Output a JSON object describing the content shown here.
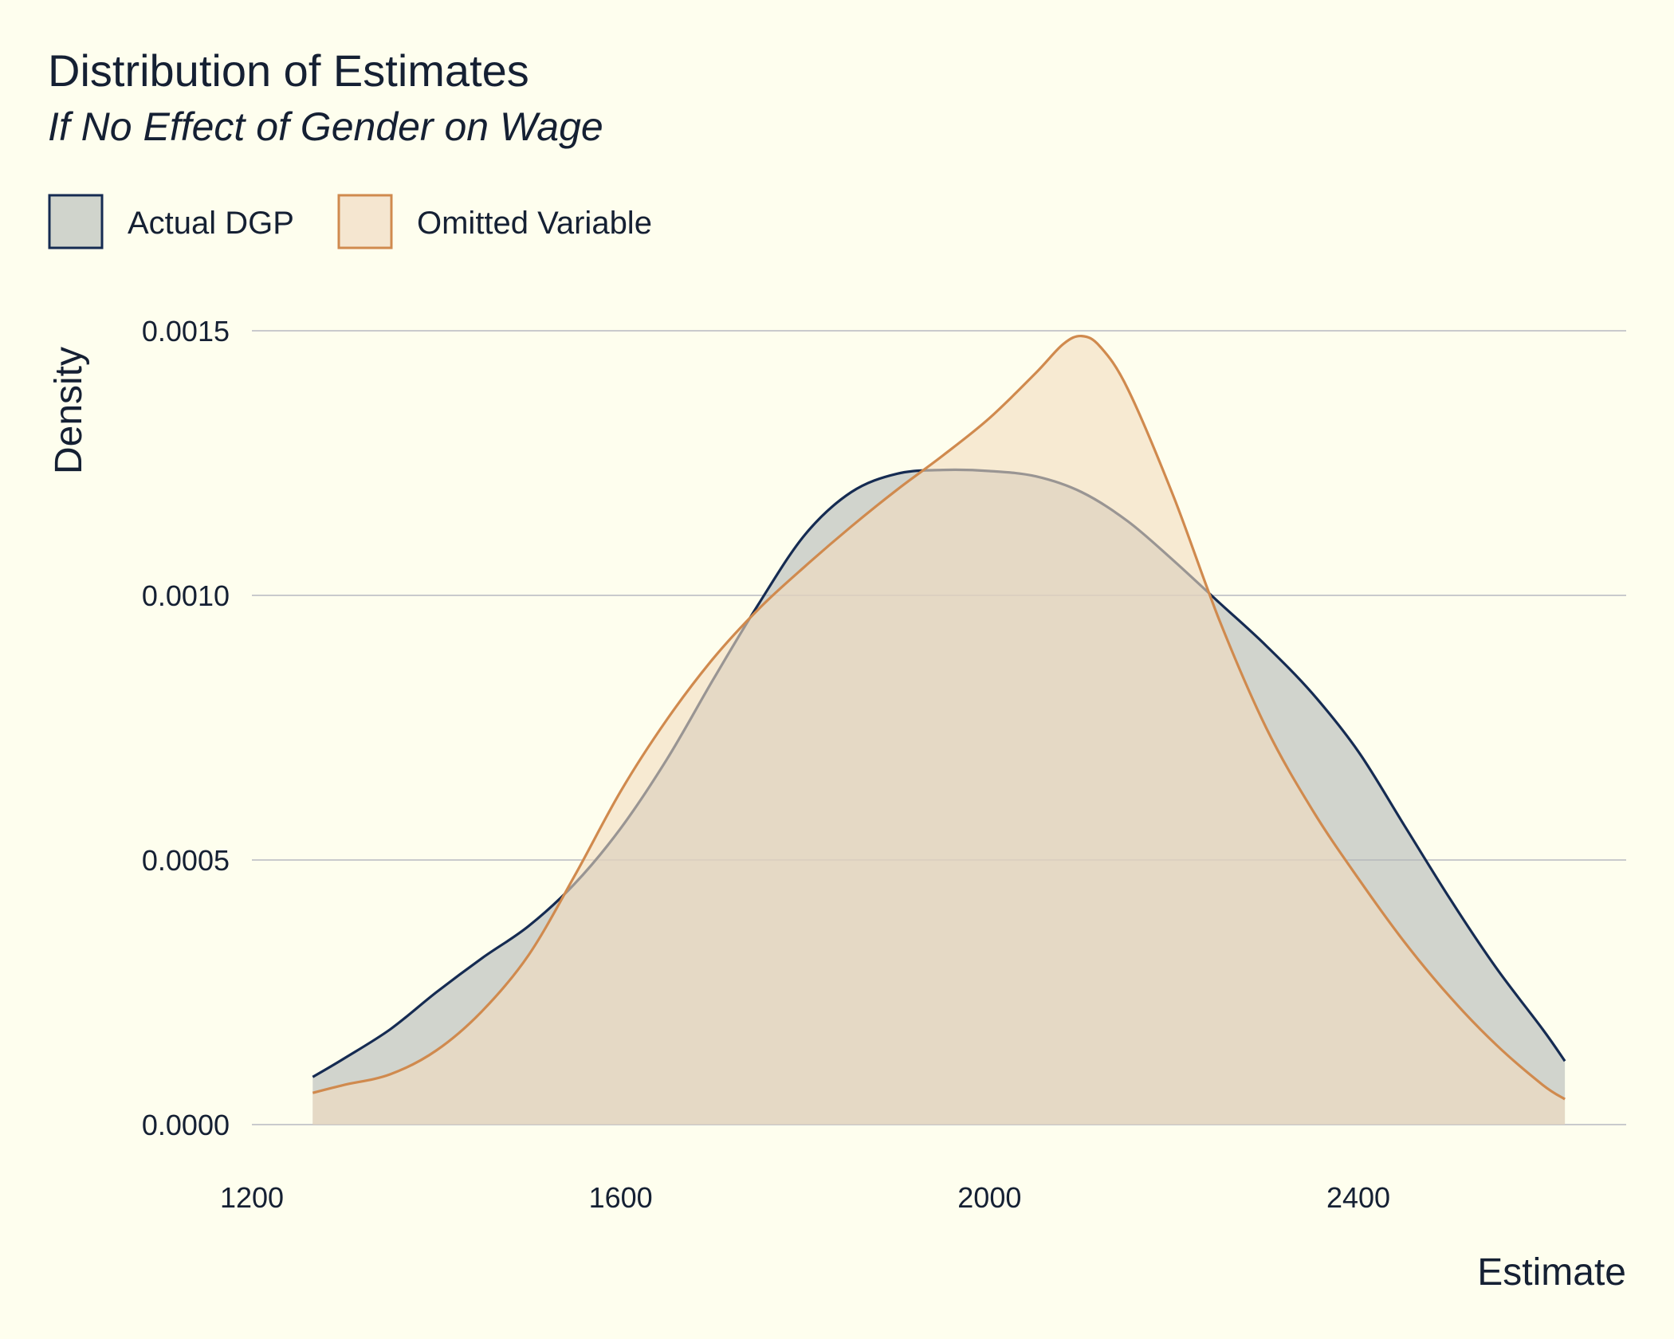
{
  "chart_data": {
    "type": "area",
    "title": "Distribution of Estimates",
    "subtitle": "If No Effect of Gender on Wage",
    "xlabel": "Estimate",
    "ylabel": "Density",
    "xlim": [
      1200,
      2650
    ],
    "ylim": [
      0,
      0.0015
    ],
    "x_ticks": [
      1200,
      1600,
      2000,
      2400
    ],
    "x_tick_labels": [
      "1200",
      "1600",
      "2000",
      "2400"
    ],
    "y_ticks": [
      0,
      0.0005,
      0.001,
      0.0015
    ],
    "y_tick_labels": [
      "0.0000",
      "0.0005",
      "0.0010",
      "0.0015"
    ],
    "grid": "horizontal",
    "legend_position": "top-left",
    "series": [
      {
        "name": "Actual DGP",
        "line_color": "#152b52",
        "fill_color": "#b3b8b7",
        "points": [
          [
            1266,
            9e-05
          ],
          [
            1300,
            0.000125
          ],
          [
            1350,
            0.00018
          ],
          [
            1400,
            0.00025
          ],
          [
            1450,
            0.000315
          ],
          [
            1500,
            0.000375
          ],
          [
            1550,
            0.000455
          ],
          [
            1600,
            0.00056
          ],
          [
            1650,
            0.00069
          ],
          [
            1700,
            0.00084
          ],
          [
            1750,
            0.000985
          ],
          [
            1800,
            0.001115
          ],
          [
            1850,
            0.001195
          ],
          [
            1900,
            0.00123
          ],
          [
            1950,
            0.001237
          ],
          [
            2000,
            0.001235
          ],
          [
            2050,
            0.001225
          ],
          [
            2100,
            0.001195
          ],
          [
            2150,
            0.00114
          ],
          [
            2200,
            0.001065
          ],
          [
            2250,
            0.000985
          ],
          [
            2300,
            0.000905
          ],
          [
            2350,
            0.000815
          ],
          [
            2400,
            0.000705
          ],
          [
            2450,
            0.000565
          ],
          [
            2500,
            0.000425
          ],
          [
            2550,
            0.000295
          ],
          [
            2600,
            0.00018
          ],
          [
            2624,
            0.00012
          ]
        ]
      },
      {
        "name": "Omitted Variable",
        "line_color": "#d08a4e",
        "fill_color": "#f2dcc0",
        "points": [
          [
            1266,
            6e-05
          ],
          [
            1300,
            7.5e-05
          ],
          [
            1350,
            9.5e-05
          ],
          [
            1400,
            0.00014
          ],
          [
            1450,
            0.000215
          ],
          [
            1500,
            0.00032
          ],
          [
            1550,
            0.00047
          ],
          [
            1600,
            0.00063
          ],
          [
            1650,
            0.000765
          ],
          [
            1700,
            0.00088
          ],
          [
            1750,
            0.000975
          ],
          [
            1800,
            0.001055
          ],
          [
            1850,
            0.00113
          ],
          [
            1900,
            0.0012
          ],
          [
            1950,
            0.001265
          ],
          [
            2000,
            0.001335
          ],
          [
            2050,
            0.00142
          ],
          [
            2080,
            0.001475
          ],
          [
            2100,
            0.00149
          ],
          [
            2120,
            0.00147
          ],
          [
            2150,
            0.00139
          ],
          [
            2200,
            0.001185
          ],
          [
            2250,
            0.00095
          ],
          [
            2300,
            0.00075
          ],
          [
            2350,
            0.000595
          ],
          [
            2400,
            0.000465
          ],
          [
            2450,
            0.000345
          ],
          [
            2500,
            0.00024
          ],
          [
            2550,
            0.00015
          ],
          [
            2600,
            7.5e-05
          ],
          [
            2624,
            4.8e-05
          ]
        ]
      }
    ]
  }
}
